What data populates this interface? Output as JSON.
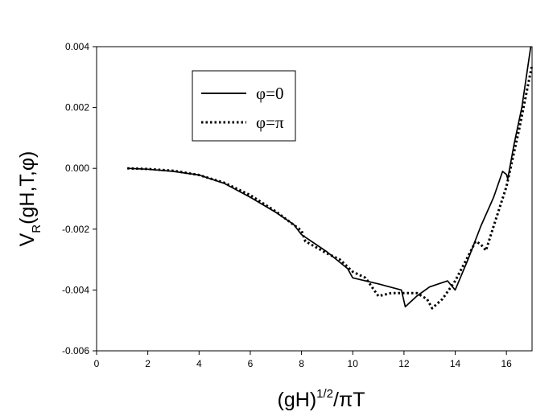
{
  "chart_data": {
    "type": "line",
    "title": "",
    "xlabel": {
      "main": "(gH)",
      "sup": "1/2",
      "rest": "/πT"
    },
    "ylabel": {
      "main": "V",
      "sub": "R",
      "rest": "(gH,T,φ)"
    },
    "xlim": [
      0,
      17
    ],
    "ylim": [
      -0.006,
      0.004
    ],
    "xticks": [
      0,
      2,
      4,
      6,
      8,
      10,
      12,
      14,
      16
    ],
    "xtick_labels": [
      "0",
      "2",
      "4",
      "6",
      "8",
      "10",
      "12",
      "14",
      "16"
    ],
    "yticks": [
      0.004,
      0.002,
      0.0,
      -0.002,
      -0.004,
      -0.006
    ],
    "ytick_labels": [
      "0.004",
      "0.002",
      "0.000",
      "-0.002",
      "-0.004",
      "-0.006"
    ],
    "grid": false,
    "legend_position": "top-left",
    "series": [
      {
        "name": "φ=0",
        "style": "solid",
        "color": "#000000",
        "x": [
          1.2,
          2,
          3,
          4,
          5,
          6,
          7,
          7.7,
          8.0,
          9,
          9.8,
          10.0,
          11,
          11.9,
          12.05,
          12.5,
          13,
          13.7,
          14.0,
          14.5,
          15,
          15.5,
          15.85,
          16.0,
          16.05,
          16.3,
          16.6,
          16.95
        ],
        "y": [
          0.0,
          -3e-05,
          -0.0001,
          -0.00022,
          -0.0005,
          -0.00095,
          -0.00145,
          -0.00185,
          -0.00218,
          -0.00275,
          -0.0033,
          -0.0036,
          -0.0038,
          -0.004,
          -0.00455,
          -0.0042,
          -0.0039,
          -0.0037,
          -0.004,
          -0.003,
          -0.0019,
          -0.00095,
          -0.0001,
          -0.0002,
          -0.00035,
          0.0008,
          0.002,
          0.004
        ]
      },
      {
        "name": "φ=π",
        "style": "dotted",
        "color": "#000000",
        "x": [
          1.2,
          2,
          3,
          4,
          5,
          6,
          7,
          8.0,
          8.15,
          9,
          9.5,
          10.0,
          10.5,
          11,
          11.5,
          12,
          12.5,
          12.9,
          13.1,
          13.5,
          14,
          14.5,
          14.8,
          15.0,
          15.2,
          15.5,
          16,
          16.5,
          17
        ],
        "y": [
          0.0,
          -2e-05,
          -8e-05,
          -0.00022,
          -0.00048,
          -0.00088,
          -0.00142,
          -0.00205,
          -0.0024,
          -0.0028,
          -0.003,
          -0.0034,
          -0.0036,
          -0.0042,
          -0.0041,
          -0.0041,
          -0.0041,
          -0.0043,
          -0.0046,
          -0.0043,
          -0.0037,
          -0.0029,
          -0.0024,
          -0.0025,
          -0.0027,
          -0.0019,
          -0.0006,
          0.0013,
          0.0034
        ]
      }
    ]
  }
}
